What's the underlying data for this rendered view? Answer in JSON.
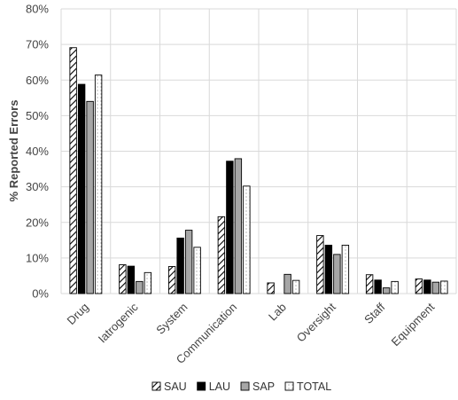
{
  "chart_data": {
    "type": "bar",
    "ylabel": "% Reported Errors",
    "ylim": [
      0,
      80
    ],
    "ytick_step": 10,
    "ytick_format": "percent",
    "grid": "vertical lines between categories",
    "legend_position": "bottom",
    "categories": [
      "Drug",
      "Iatrogenic",
      "System",
      "Communication",
      "Lab",
      "Oversight",
      "Staff",
      "Equipment"
    ],
    "series": [
      {
        "name": "SAU",
        "fill": "hatch",
        "color": "#000000",
        "values": [
          69.1,
          8.1,
          7.6,
          21.6,
          3.0,
          16.3,
          5.3,
          4.1
        ]
      },
      {
        "name": "LAU",
        "fill": "solid",
        "color": "#000000",
        "values": [
          58.8,
          7.7,
          15.6,
          37.2,
          0.0,
          13.6,
          3.8,
          3.8
        ]
      },
      {
        "name": "SAP",
        "fill": "solid",
        "color": "#a6a6a6",
        "values": [
          54.0,
          3.4,
          17.8,
          37.9,
          5.4,
          11.0,
          1.6,
          3.2
        ]
      },
      {
        "name": "TOTAL",
        "fill": "dotted",
        "color": "#ffffff",
        "values": [
          61.4,
          5.9,
          13.0,
          30.2,
          3.7,
          13.6,
          3.4,
          3.5
        ]
      }
    ]
  }
}
